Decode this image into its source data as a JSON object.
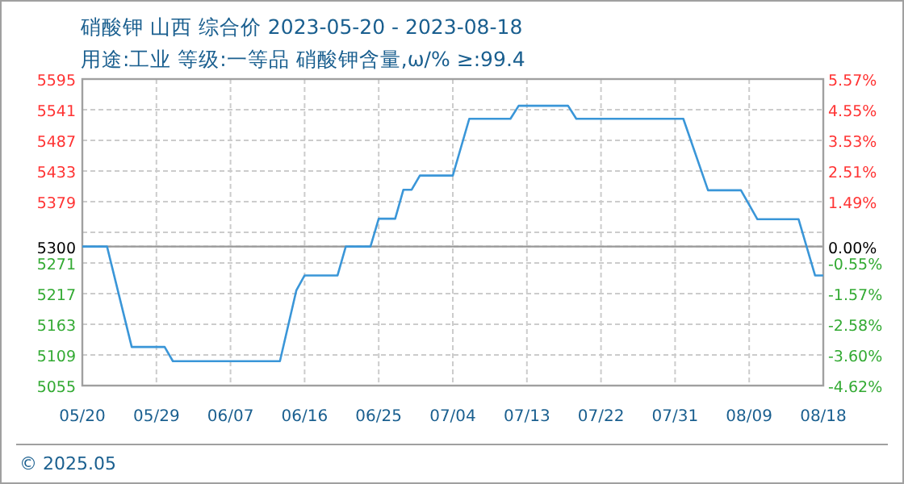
{
  "chart_data": {
    "type": "line",
    "title": "硝酸钾 山西 综合价 2023-05-20 - 2023-08-18",
    "subtitle": "用途:工业 等级:一等品 硝酸钾含量,ω/% ≥:99.4",
    "annotations": [
      "© 2025.05"
    ],
    "x": [
      "2023-05-20",
      "2023-05-23",
      "2023-05-26",
      "2023-05-30",
      "2023-05-31",
      "2023-06-13",
      "2023-06-15",
      "2023-06-16",
      "2023-06-20",
      "2023-06-21",
      "2023-06-24",
      "2023-06-25",
      "2023-06-27",
      "2023-06-28",
      "2023-06-29",
      "2023-06-30",
      "2023-07-04",
      "2023-07-06",
      "2023-07-11",
      "2023-07-12",
      "2023-07-18",
      "2023-07-19",
      "2023-08-01",
      "2023-08-04",
      "2023-08-08",
      "2023-08-10",
      "2023-08-15",
      "2023-08-17",
      "2023-08-18"
    ],
    "series": [
      {
        "color": "#3a96d8",
        "values": [
          5300,
          5300,
          5123,
          5123,
          5098,
          5098,
          5223,
          5249,
          5249,
          5300,
          5300,
          5349,
          5349,
          5400,
          5400,
          5425,
          5425,
          5525,
          5525,
          5548,
          5548,
          5525,
          5525,
          5399,
          5399,
          5348,
          5348,
          5249,
          5249
        ]
      }
    ],
    "xlim": [
      "2023-05-20",
      "2023-08-18"
    ],
    "xticks": [
      {
        "value": "2023-05-20",
        "label": "05/20"
      },
      {
        "value": "2023-05-29",
        "label": "05/29"
      },
      {
        "value": "2023-06-07",
        "label": "06/07"
      },
      {
        "value": "2023-06-16",
        "label": "06/16"
      },
      {
        "value": "2023-06-25",
        "label": "06/25"
      },
      {
        "value": "2023-07-04",
        "label": "07/04"
      },
      {
        "value": "2023-07-13",
        "label": "07/13"
      },
      {
        "value": "2023-07-22",
        "label": "07/22"
      },
      {
        "value": "2023-07-31",
        "label": "07/31"
      },
      {
        "value": "2023-08-09",
        "label": "08/09"
      },
      {
        "value": "2023-08-18",
        "label": "08/18"
      }
    ],
    "ylim": [
      5055,
      5595
    ],
    "yticks": [
      5595,
      5541,
      5487,
      5433,
      5379,
      {
        "value": 5325,
        "label": null
      },
      5300,
      5271,
      5217,
      5163,
      5109,
      5055
    ],
    "y2lim": [
      -4.62,
      5.57
    ],
    "y2ticks": [
      {
        "value": 5.57,
        "label": "5.57%"
      },
      {
        "value": 4.55,
        "label": "4.55%"
      },
      {
        "value": 3.53,
        "label": "3.53%"
      },
      {
        "value": 2.51,
        "label": "2.51%"
      },
      {
        "value": 1.49,
        "label": "1.49%"
      },
      {
        "value": 0,
        "label": "0.00%"
      },
      {
        "value": -0.55,
        "label": "-0.55%"
      },
      {
        "value": -1.57,
        "label": "-1.57%"
      },
      {
        "value": -2.58,
        "label": "-2.58%"
      },
      {
        "value": -3.6,
        "label": "-3.60%"
      },
      {
        "value": -4.62,
        "label": "-4.62%"
      }
    ],
    "ref_lines": [
      {
        "axis": "y",
        "value": 5300,
        "color": "#999999"
      }
    ],
    "grid": true,
    "marker": "none",
    "line_style": "solid"
  }
}
